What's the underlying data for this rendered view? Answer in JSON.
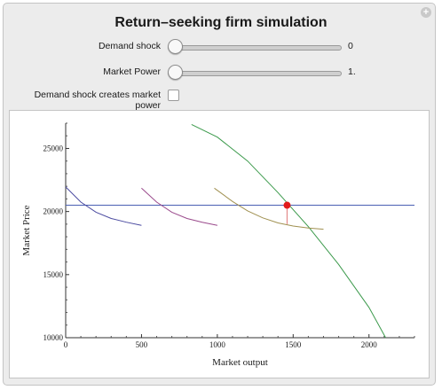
{
  "app": {
    "title": "Return–seeking firm simulation",
    "corner_icon": "plus-circle-icon"
  },
  "controls": {
    "demand_shock": {
      "label": "Demand shock",
      "value": 0,
      "value_text": "0",
      "min": 0,
      "max": 1
    },
    "market_power": {
      "label": "Market Power",
      "value": 1,
      "value_text": "1.",
      "min": 1,
      "max": 2
    },
    "checkbox": {
      "label": "Demand shock creates market power",
      "checked": false
    }
  },
  "colors": {
    "panel_bg": "#ececec",
    "horizontal_line": "#4a5fb4",
    "green_curve": "#3c9a4c",
    "curve_1": "#4a4aa0",
    "curve_2": "#9a4a8c",
    "curve_3": "#a09050",
    "point": "#e21b1b",
    "stem": "#e28a8a"
  },
  "chart_data": {
    "type": "line",
    "xlabel": "Market output",
    "ylabel": "Market Price",
    "xlim": [
      0,
      2300
    ],
    "ylim": [
      10000,
      27000
    ],
    "x_ticks": [
      0,
      500,
      1000,
      1500,
      2000
    ],
    "x_tick_labels": [
      "0",
      "500",
      "1000",
      "1500",
      "2000"
    ],
    "y_ticks": [
      10000,
      15000,
      20000,
      25000
    ],
    "y_tick_labels": [
      "10000",
      "15000",
      "20000",
      "25000"
    ],
    "series": [
      {
        "color": "#4a5fb4",
        "x": [
          0,
          2300
        ],
        "y": [
          20500,
          20500
        ]
      },
      {
        "color": "#3c9a4c",
        "x": [
          830,
          1000,
          1200,
          1400,
          1600,
          1800,
          2000,
          2110
        ],
        "y": [
          26900,
          25900,
          24000,
          21500,
          18800,
          15800,
          12400,
          10000
        ]
      },
      {
        "color": "#4a4aa0",
        "x": [
          0,
          100,
          200,
          300,
          400,
          500
        ],
        "y": [
          21950,
          20750,
          19950,
          19450,
          19150,
          18900
        ]
      },
      {
        "color": "#9a4a8c",
        "x": [
          500,
          600,
          700,
          800,
          900,
          1000
        ],
        "y": [
          21850,
          20750,
          19950,
          19450,
          19150,
          18900
        ]
      },
      {
        "color": "#a09050",
        "x": [
          980,
          1100,
          1200,
          1300,
          1400,
          1500,
          1600,
          1700
        ],
        "y": [
          21850,
          20800,
          20050,
          19500,
          19100,
          18850,
          18700,
          18600
        ]
      }
    ],
    "marker": {
      "x": 1460,
      "y": 20500,
      "stem_to_y": 19000
    }
  }
}
